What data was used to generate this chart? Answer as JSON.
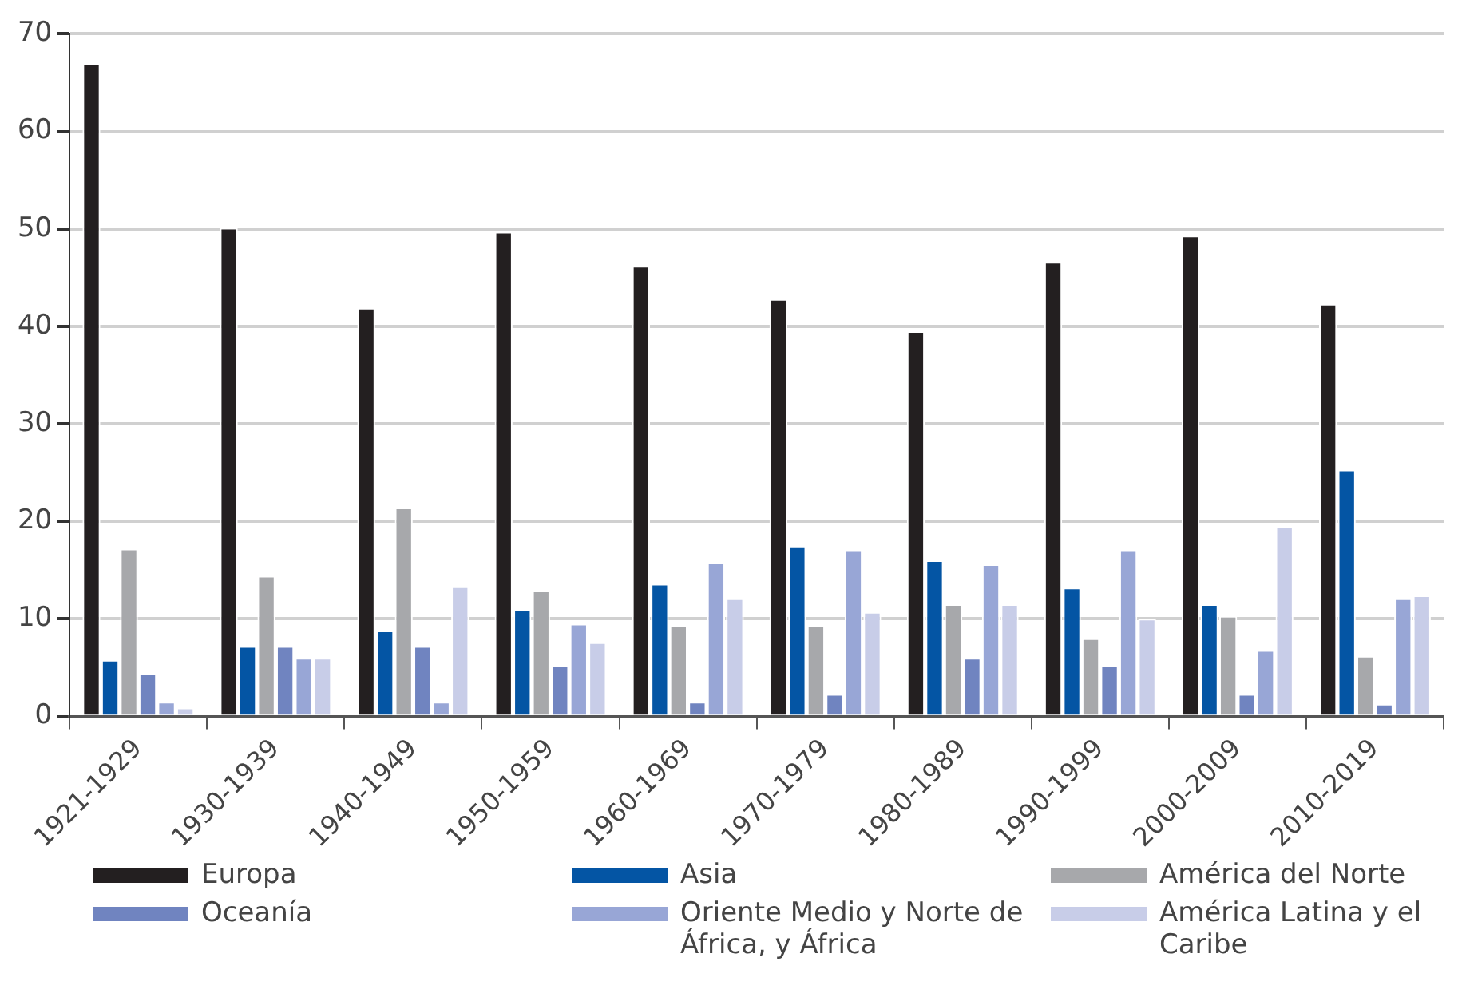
{
  "chart_data": {
    "type": "bar",
    "categories": [
      "1921-1929",
      "1930-1939",
      "1940-1949",
      "1950-1959",
      "1960-1969",
      "1970-1979",
      "1980-1989",
      "1990-1999",
      "2000-2009",
      "2010-2019"
    ],
    "series": [
      {
        "name": "Europa",
        "color": "#231f20",
        "values": [
          67,
          50.1,
          41.9,
          49.7,
          46.2,
          42.8,
          39.5,
          46.6,
          49.3,
          42.3
        ]
      },
      {
        "name": "Asia",
        "color": "#0455a4",
        "values": [
          5.8,
          7.2,
          8.8,
          11,
          13.6,
          17.5,
          16,
          13.2,
          11.5,
          25.3
        ]
      },
      {
        "name": "América del Norte",
        "color": "#a7a8ab",
        "values": [
          17.2,
          14.4,
          21.4,
          12.9,
          9.3,
          9.3,
          11.5,
          8,
          10.3,
          6.2
        ]
      },
      {
        "name": "Oceanía",
        "color": "#7084c0",
        "values": [
          4.4,
          7.2,
          7.2,
          5.2,
          1.5,
          2.3,
          6,
          5.2,
          2.3,
          1.3
        ]
      },
      {
        "name": "Oriente Medio y Norte de África, y África",
        "color": "#98a6d6",
        "values": [
          1.5,
          6,
          1.5,
          9.5,
          15.8,
          17.1,
          15.6,
          17.1,
          6.8,
          12.1
        ]
      },
      {
        "name": "América Latina y el Caribe",
        "color": "#c8cde8",
        "values": [
          0.9,
          6,
          13.4,
          7.6,
          12.1,
          10.7,
          11.5,
          10,
          19.5,
          12.4
        ]
      }
    ],
    "ylim": [
      0,
      70
    ],
    "yticks": [
      0,
      10,
      20,
      30,
      40,
      50,
      60,
      70
    ],
    "grid": "y",
    "legend": "bottom"
  }
}
